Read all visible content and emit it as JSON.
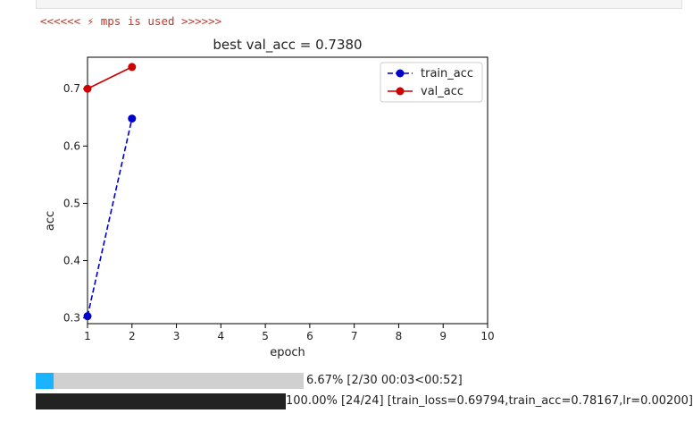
{
  "log": {
    "text": "<<<<<< ⚡ mps is used >>>>>>"
  },
  "chart_data": {
    "type": "line",
    "title": "best val_acc = 0.7380",
    "xlabel": "epoch",
    "ylabel": "acc",
    "xlim": [
      1,
      10
    ],
    "ylim": [
      0.29,
      0.755
    ],
    "xticks": [
      1,
      2,
      3,
      4,
      5,
      6,
      7,
      8,
      9,
      10
    ],
    "yticks": [
      0.3,
      0.4,
      0.5,
      0.6,
      0.7
    ],
    "grid": false,
    "legend_position": "top-right",
    "series": [
      {
        "name": "train_acc",
        "color": "#0000cc",
        "linestyle": "dashed",
        "marker": "circle",
        "x": [
          1,
          2
        ],
        "values": [
          0.303,
          0.648
        ]
      },
      {
        "name": "val_acc",
        "color": "#cc0000",
        "linestyle": "solid",
        "marker": "circle",
        "x": [
          1,
          2
        ],
        "values": [
          0.7,
          0.738
        ]
      }
    ]
  },
  "progress": [
    {
      "fraction": 0.0667,
      "fill_color": "#1ab3ff",
      "text": "6.67% [2/30 00:03<00:52]"
    },
    {
      "fraction": 1.0,
      "fill_color": "#222222",
      "text": "100.00% [24/24] [train_loss=0.69794,train_acc=0.78167,lr=0.00200]"
    }
  ]
}
